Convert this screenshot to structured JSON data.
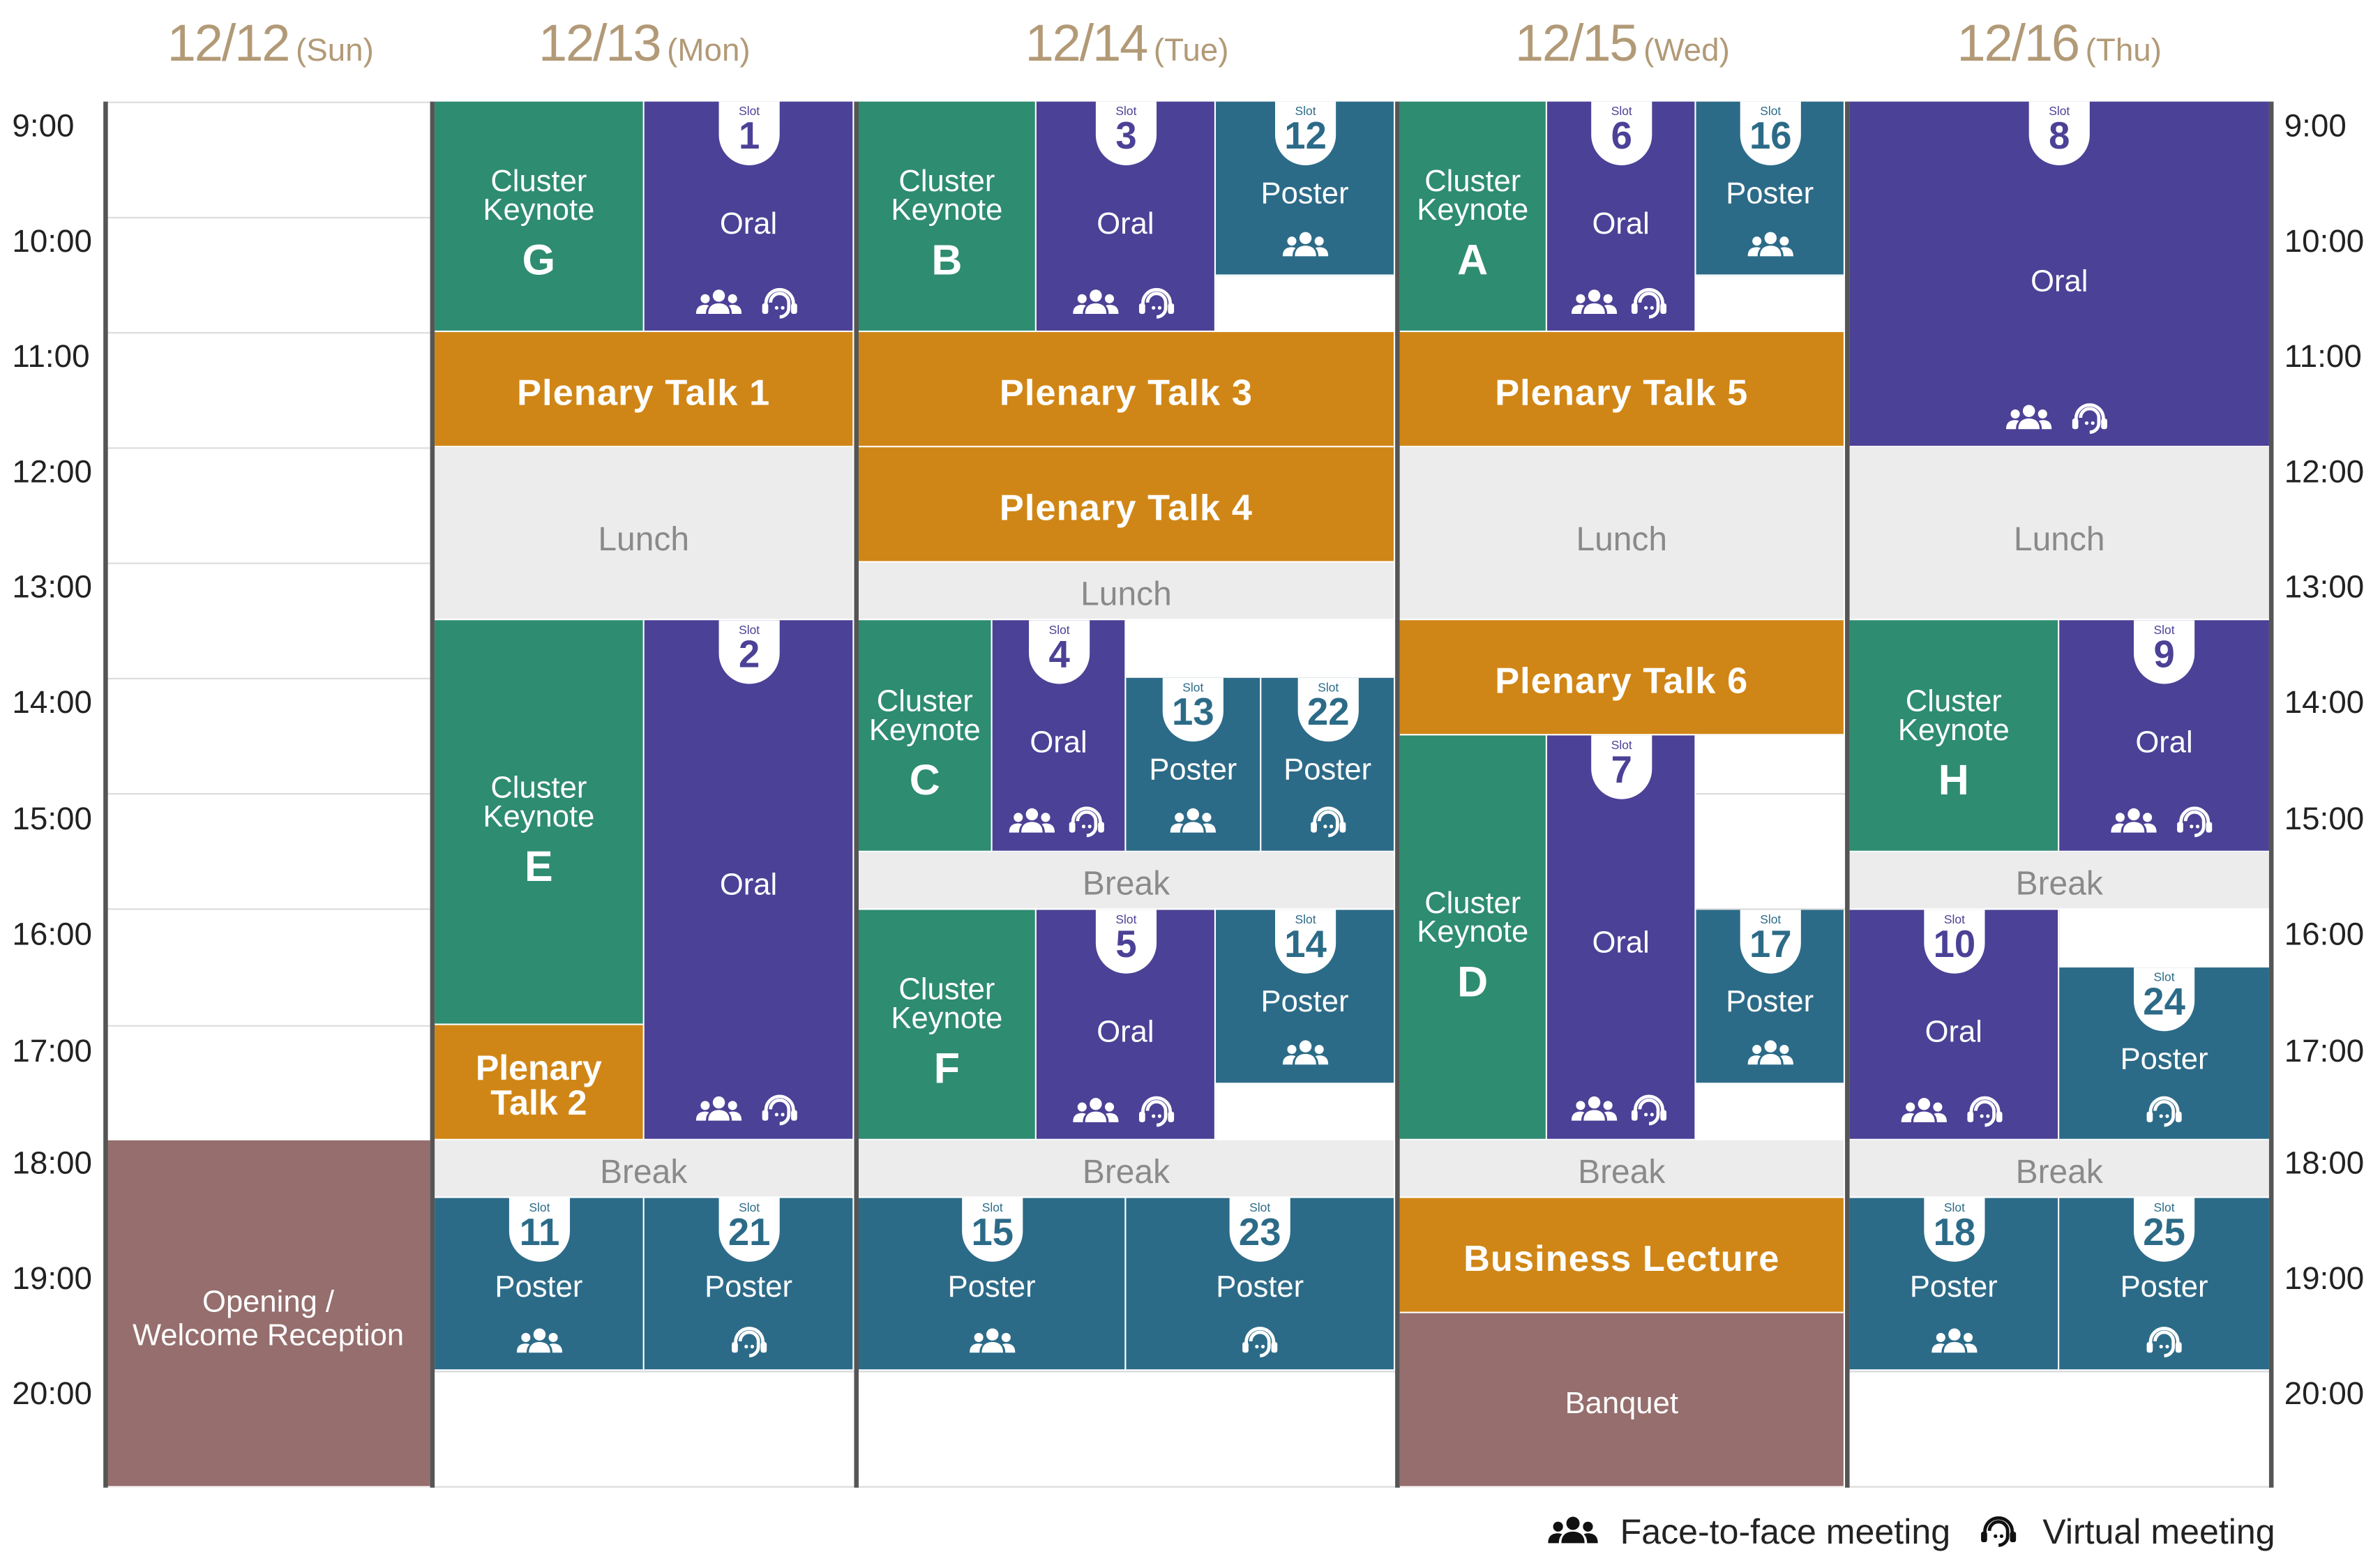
{
  "days": [
    {
      "date": "12/12",
      "weekday": "(Sun)"
    },
    {
      "date": "12/13",
      "weekday": "(Mon)"
    },
    {
      "date": "12/14",
      "weekday": "(Tue)"
    },
    {
      "date": "12/15",
      "weekday": "(Wed)"
    },
    {
      "date": "12/16",
      "weekday": "(Thu)"
    }
  ],
  "times": [
    "9:00",
    "10:00",
    "11:00",
    "12:00",
    "13:00",
    "14:00",
    "15:00",
    "16:00",
    "17:00",
    "18:00",
    "19:00",
    "20:00"
  ],
  "slot_label": "Slot",
  "labels": {
    "cluster": "Cluster",
    "keynote": "Keynote",
    "oral": "Oral",
    "poster": "Poster",
    "lunch": "Lunch",
    "break": "Break",
    "plenary1": "Plenary Talk 1",
    "plenary2_l1": "Plenary",
    "plenary2_l2": "Talk 2",
    "plenary3": "Plenary Talk 3",
    "plenary4": "Plenary Talk 4",
    "plenary5": "Plenary Talk 5",
    "plenary6": "Plenary Talk 6",
    "business": "Business Lecture",
    "banquet": "Banquet",
    "opening_l1": "Opening /",
    "opening_l2": "Welcome Reception"
  },
  "keynote_letters": {
    "g": "G",
    "e": "E",
    "b": "B",
    "c": "C",
    "f": "F",
    "a": "A",
    "d": "D",
    "h": "H"
  },
  "slots": {
    "s1": "1",
    "s2": "2",
    "s3": "3",
    "s4": "4",
    "s5": "5",
    "s6": "6",
    "s7": "7",
    "s8": "8",
    "s9": "9",
    "s10": "10",
    "s11": "11",
    "s12": "12",
    "s13": "13",
    "s14": "14",
    "s15": "15",
    "s16": "16",
    "s17": "17",
    "s18": "18",
    "s21": "21",
    "s22": "22",
    "s23": "23",
    "s24": "24",
    "s25": "25"
  },
  "legend": {
    "face": "Face-to-face meeting",
    "virtual": "Virtual meeting",
    "face_icon": "people-icon",
    "virtual_icon": "headset-icon"
  },
  "colors": {
    "keynote": "#2e8c70",
    "oral": "#4b4196",
    "poster": "#2c6b88",
    "plenary": "#d08616",
    "meal_break": "#ececec",
    "reception": "#956e6d",
    "day_header": "#b29a77"
  }
}
